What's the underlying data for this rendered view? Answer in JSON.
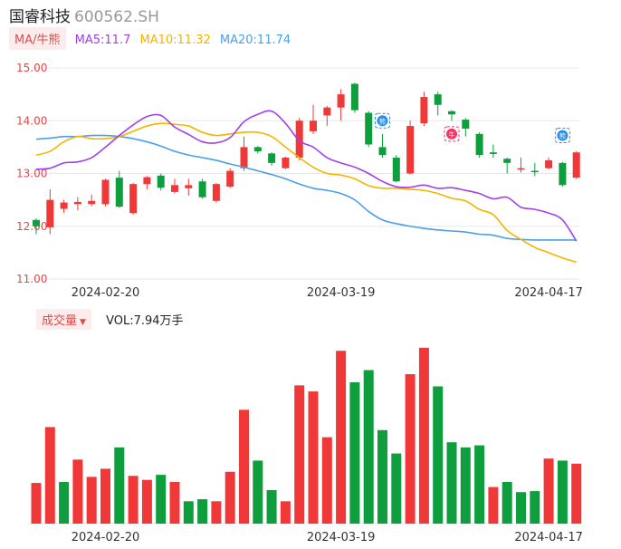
{
  "header": {
    "name": "国睿科技",
    "code": "600562.SH"
  },
  "ma_toolbar": {
    "button_label": "MA/牛熊",
    "items": [
      {
        "text": "MA5:11.7",
        "color": "#a040e8"
      },
      {
        "text": "MA10:11.32",
        "color": "#f5b400"
      },
      {
        "text": "MA20:11.74",
        "color": "#4aa0e8"
      }
    ]
  },
  "volume_toolbar": {
    "button_label": "成交量",
    "value_text": "VOL:7.94万手"
  },
  "colors": {
    "up": "#f03838",
    "down": "#0e9e3e",
    "ma5": "#a040e8",
    "ma10": "#f5b400",
    "ma20": "#4aa0e8",
    "grid": "#e8e8e8",
    "axis_label": "#e04a4a"
  },
  "chart_data": [
    {
      "type": "candlestick",
      "y_ticks": [
        "15.00",
        "14.00",
        "13.00",
        "12.00",
        "11.00"
      ],
      "ylim": [
        11.0,
        15.0
      ],
      "x_ticks": [
        "2024-02-20",
        "2024-03-19",
        "2024-04-17"
      ],
      "x_tick_indices": [
        5,
        22,
        37
      ],
      "grid": true,
      "candles": [
        {
          "o": 12.12,
          "c": 12.0,
          "h": 12.15,
          "l": 11.85
        },
        {
          "o": 11.98,
          "c": 12.5,
          "h": 12.7,
          "l": 11.85
        },
        {
          "o": 12.33,
          "c": 12.45,
          "h": 12.5,
          "l": 12.25
        },
        {
          "o": 12.42,
          "c": 12.46,
          "h": 12.55,
          "l": 12.3
        },
        {
          "o": 12.42,
          "c": 12.48,
          "h": 12.6,
          "l": 12.38
        },
        {
          "o": 12.42,
          "c": 12.88,
          "h": 12.9,
          "l": 12.38
        },
        {
          "o": 12.92,
          "c": 12.37,
          "h": 13.05,
          "l": 12.35
        },
        {
          "o": 12.25,
          "c": 12.8,
          "h": 12.82,
          "l": 12.22
        },
        {
          "o": 12.8,
          "c": 12.93,
          "h": 12.95,
          "l": 12.7
        },
        {
          "o": 12.96,
          "c": 12.73,
          "h": 13.0,
          "l": 12.68
        },
        {
          "o": 12.65,
          "c": 12.78,
          "h": 12.9,
          "l": 12.62
        },
        {
          "o": 12.72,
          "c": 12.78,
          "h": 12.9,
          "l": 12.58
        },
        {
          "o": 12.85,
          "c": 12.55,
          "h": 12.9,
          "l": 12.52
        },
        {
          "o": 12.48,
          "c": 12.8,
          "h": 12.82,
          "l": 12.45
        },
        {
          "o": 12.75,
          "c": 13.05,
          "h": 13.1,
          "l": 12.72
        },
        {
          "o": 13.1,
          "c": 13.5,
          "h": 13.7,
          "l": 13.05
        },
        {
          "o": 13.5,
          "c": 13.42,
          "h": 13.52,
          "l": 13.38
        },
        {
          "o": 13.38,
          "c": 13.2,
          "h": 13.4,
          "l": 13.15
        },
        {
          "o": 13.1,
          "c": 13.3,
          "h": 13.32,
          "l": 13.08
        },
        {
          "o": 13.3,
          "c": 14.0,
          "h": 14.05,
          "l": 13.25
        },
        {
          "o": 13.8,
          "c": 14.0,
          "h": 14.3,
          "l": 13.75
        },
        {
          "o": 14.1,
          "c": 14.25,
          "h": 14.28,
          "l": 13.9
        },
        {
          "o": 14.25,
          "c": 14.5,
          "h": 14.6,
          "l": 14.0
        },
        {
          "o": 14.7,
          "c": 14.2,
          "h": 14.72,
          "l": 14.15
        },
        {
          "o": 14.15,
          "c": 13.55,
          "h": 14.18,
          "l": 13.5
        },
        {
          "o": 13.5,
          "c": 13.35,
          "h": 13.75,
          "l": 13.3
        },
        {
          "o": 13.3,
          "c": 12.85,
          "h": 13.35,
          "l": 12.83
        },
        {
          "o": 13.0,
          "c": 13.9,
          "h": 14.0,
          "l": 12.98
        },
        {
          "o": 13.95,
          "c": 14.45,
          "h": 14.55,
          "l": 13.9
        },
        {
          "o": 14.5,
          "c": 14.3,
          "h": 14.55,
          "l": 14.1
        },
        {
          "o": 14.18,
          "c": 14.12,
          "h": 14.2,
          "l": 14.0
        },
        {
          "o": 14.02,
          "c": 13.85,
          "h": 14.05,
          "l": 13.7
        },
        {
          "o": 13.75,
          "c": 13.35,
          "h": 13.78,
          "l": 13.3
        },
        {
          "o": 13.4,
          "c": 13.37,
          "h": 13.55,
          "l": 13.3
        },
        {
          "o": 13.28,
          "c": 13.2,
          "h": 13.3,
          "l": 13.0
        },
        {
          "o": 13.08,
          "c": 13.1,
          "h": 13.3,
          "l": 13.02
        },
        {
          "o": 13.05,
          "c": 13.04,
          "h": 13.2,
          "l": 12.95
        },
        {
          "o": 13.1,
          "c": 13.25,
          "h": 13.3,
          "l": 13.08
        },
        {
          "o": 13.2,
          "c": 12.78,
          "h": 13.22,
          "l": 12.75
        },
        {
          "o": 12.92,
          "c": 13.4,
          "h": 13.42,
          "l": 12.9
        }
      ],
      "ma5": [
        13.08,
        13.1,
        13.2,
        13.22,
        13.3,
        13.5,
        13.72,
        13.92,
        14.08,
        14.1,
        13.88,
        13.74,
        13.6,
        13.58,
        13.68,
        13.98,
        14.12,
        14.18,
        13.95,
        13.62,
        13.5,
        13.3,
        13.2,
        13.12,
        13.0,
        12.85,
        12.75,
        12.74,
        12.78,
        12.72,
        12.73,
        12.68,
        12.62,
        12.52,
        12.55,
        12.36,
        12.32,
        12.25,
        12.12,
        11.72
      ],
      "ma10": [
        13.35,
        13.42,
        13.6,
        13.7,
        13.66,
        13.66,
        13.7,
        13.8,
        13.9,
        13.95,
        13.93,
        13.9,
        13.78,
        13.72,
        13.75,
        13.78,
        13.78,
        13.7,
        13.5,
        13.3,
        13.12,
        13.0,
        12.97,
        12.9,
        12.77,
        12.72,
        12.72,
        12.7,
        12.68,
        12.62,
        12.53,
        12.48,
        12.32,
        12.22,
        11.92,
        11.75,
        11.6,
        11.5,
        11.4,
        11.32
      ],
      "ma20": [
        13.65,
        13.67,
        13.7,
        13.7,
        13.72,
        13.72,
        13.7,
        13.66,
        13.6,
        13.52,
        13.42,
        13.35,
        13.3,
        13.25,
        13.18,
        13.12,
        13.05,
        12.98,
        12.9,
        12.8,
        12.72,
        12.68,
        12.62,
        12.5,
        12.28,
        12.12,
        12.05,
        12.0,
        11.96,
        11.93,
        11.91,
        11.89,
        11.85,
        11.83,
        11.77,
        11.75,
        11.74,
        11.74,
        11.74,
        11.74
      ],
      "markers": [
        {
          "index": 25,
          "label": "熊",
          "color": "#2f8fe8",
          "value": 14.0
        },
        {
          "index": 30,
          "label": "牛",
          "color": "#f03868",
          "value": 13.75
        },
        {
          "index": 38,
          "label": "熊",
          "color": "#2f8fe8",
          "value": 13.72
        }
      ]
    },
    {
      "type": "bar",
      "x_ticks": [
        "2024-02-20",
        "2024-03-19",
        "2024-04-17"
      ],
      "ylim": [
        0,
        180
      ],
      "values": [
        40,
        95,
        41,
        63,
        46,
        54,
        75,
        47,
        43,
        48,
        41,
        22,
        24,
        22,
        51,
        112,
        62,
        33,
        22,
        136,
        130,
        85,
        170,
        139,
        151,
        92,
        69,
        147,
        173,
        135,
        80,
        75,
        77,
        36,
        41,
        31,
        32,
        64,
        62,
        59
      ],
      "up": [
        true,
        true,
        false,
        true,
        true,
        true,
        false,
        true,
        true,
        false,
        true,
        false,
        false,
        true,
        true,
        true,
        false,
        false,
        true,
        true,
        true,
        true,
        true,
        false,
        false,
        false,
        false,
        true,
        true,
        false,
        false,
        false,
        false,
        true,
        false,
        false,
        false,
        true,
        false,
        true
      ]
    }
  ]
}
